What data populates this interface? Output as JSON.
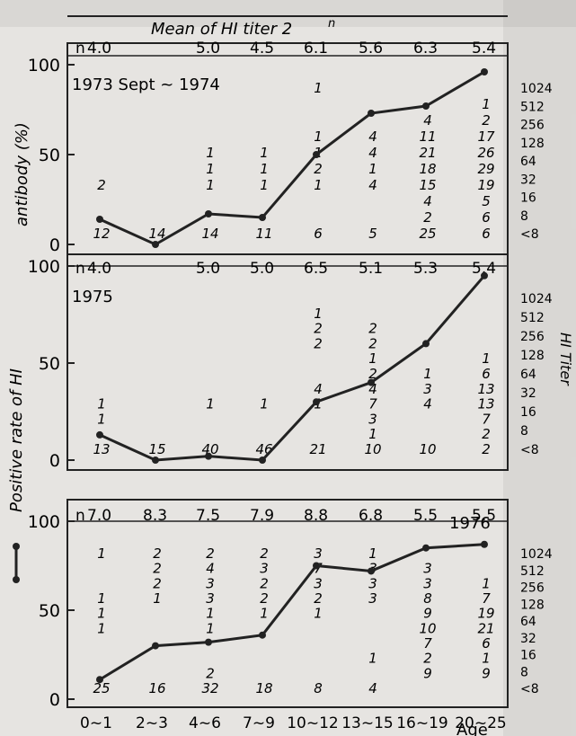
{
  "chart_data": [
    {
      "type": "line",
      "title": "1973 Sept ~ 1974",
      "xlabel": "",
      "ylabel": "",
      "ylim": [
        0,
        100
      ],
      "categories": [
        "0~1",
        "2~3",
        "4~6",
        "7~9",
        "10~12",
        "13~15",
        "16~19",
        "20~25"
      ],
      "values": [
        14,
        0,
        17,
        15,
        50,
        73,
        77,
        96
      ],
      "mean_hi_titer": [
        "4.0",
        "",
        "5.0",
        "4.5",
        "6.1",
        "5.6",
        "6.3",
        "5.4"
      ],
      "titer_counts": [
        [
          "",
          "",
          "",
          "",
          "1",
          "",
          "",
          ""
        ],
        [
          "",
          "",
          "",
          "",
          "",
          "",
          "",
          "1"
        ],
        [
          "",
          "",
          "",
          "",
          "",
          "",
          "4",
          "2"
        ],
        [
          "",
          "",
          "",
          "",
          "1",
          "4",
          "11",
          "17"
        ],
        [
          "",
          "",
          "1",
          "1",
          "1",
          "4",
          "21",
          "26"
        ],
        [
          "",
          "",
          "1",
          "1",
          "2",
          "1",
          "18",
          "29"
        ],
        [
          "2",
          "",
          "1",
          "1",
          "1",
          "4",
          "15",
          "19"
        ],
        [
          "",
          "",
          "",
          "",
          "",
          "",
          "4",
          "5"
        ],
        [
          "",
          "",
          "",
          "",
          "",
          "",
          "2",
          "6"
        ],
        [
          "12",
          "14",
          "14",
          "11",
          "6",
          "5",
          "25",
          "6"
        ]
      ]
    },
    {
      "type": "line",
      "title": "1975",
      "xlabel": "",
      "ylabel": "",
      "ylim": [
        0,
        100
      ],
      "categories": [
        "0~1",
        "2~3",
        "4~6",
        "7~9",
        "10~12",
        "13~15",
        "16~19",
        "20~25"
      ],
      "values": [
        13,
        0,
        2,
        0,
        30,
        40,
        60,
        95
      ],
      "mean_hi_titer": [
        "4.0",
        "",
        "5.0",
        "5.0",
        "6.5",
        "5.1",
        "5.3",
        "5.4"
      ],
      "titer_counts": [
        [
          "",
          "",
          "",
          "",
          "",
          "",
          "",
          ""
        ],
        [
          "",
          "",
          "",
          "",
          "1",
          "",
          "",
          ""
        ],
        [
          "",
          "",
          "",
          "",
          "2",
          "2",
          "",
          ""
        ],
        [
          "",
          "",
          "",
          "",
          "2",
          "2",
          "",
          ""
        ],
        [
          "",
          "",
          "",
          "",
          "",
          "1",
          "",
          "1"
        ],
        [
          "",
          "",
          "",
          "",
          "",
          "2",
          "1",
          "6"
        ],
        [
          "",
          "",
          "",
          "",
          "4",
          "4",
          "3",
          "13"
        ],
        [
          "1",
          "",
          "1",
          "1",
          "1",
          "7",
          "4",
          "13"
        ],
        [
          "1",
          "",
          "",
          "",
          "",
          "3",
          "",
          "7"
        ],
        [
          "",
          "",
          "",
          "",
          "",
          "1",
          "",
          "2"
        ],
        [
          "13",
          "15",
          "40",
          "46",
          "21",
          "10",
          "10",
          "2"
        ]
      ]
    },
    {
      "type": "line",
      "title": "1976",
      "xlabel": "Age",
      "ylabel": "",
      "ylim": [
        0,
        100
      ],
      "categories": [
        "0~1",
        "2~3",
        "4~6",
        "7~9",
        "10~12",
        "13~15",
        "16~19",
        "20~25"
      ],
      "values": [
        11,
        30,
        32,
        36,
        75,
        72,
        85,
        87
      ],
      "mean_hi_titer": [
        "7.0",
        "8.3",
        "7.5",
        "7.9",
        "8.8",
        "6.8",
        "5.5",
        "5.5"
      ],
      "titer_counts": [
        [
          "1",
          "2",
          "2",
          "2",
          "3",
          "1",
          "",
          ""
        ],
        [
          "",
          "2",
          "4",
          "3",
          "7",
          "3",
          "3",
          ""
        ],
        [
          "",
          "2",
          "3",
          "2",
          "3",
          "3",
          "3",
          "1"
        ],
        [
          "1",
          "1",
          "3",
          "2",
          "2",
          "3",
          "8",
          "7"
        ],
        [
          "1",
          "",
          "1",
          "1",
          "1",
          "",
          "9",
          "19"
        ],
        [
          "1",
          "",
          "1",
          "",
          "",
          "",
          "10",
          "21"
        ],
        [
          "",
          "",
          "",
          "",
          "",
          "",
          "7",
          "6"
        ],
        [
          "",
          "",
          "",
          "",
          "",
          "1",
          "2",
          "1"
        ],
        [
          "",
          "",
          "2",
          "",
          "",
          "",
          "9",
          "9"
        ],
        [
          "25",
          "16",
          "32",
          "18",
          "8",
          "4",
          "",
          ""
        ]
      ]
    }
  ],
  "labels": {
    "top_title": "Mean of HI titer",
    "top_title_exp": "2",
    "top_title_sup": "n",
    "n_prefix": "n",
    "left_axis_upper": "Positive rate of HI",
    "left_axis_lower": "antibody (%)",
    "right_axis_label": "HI Titer",
    "titer_ticks": [
      "1024",
      "512",
      "256",
      "128",
      "64",
      "32",
      "16",
      "8",
      "<8"
    ],
    "y_ticks": [
      "0",
      "50",
      "100"
    ]
  }
}
